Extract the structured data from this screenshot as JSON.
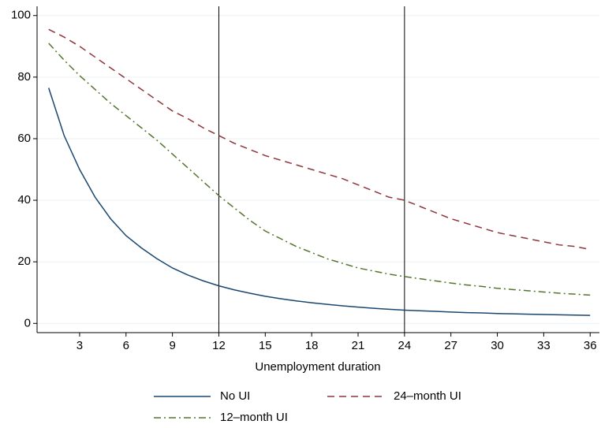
{
  "chart_data": {
    "type": "line",
    "x_label": "Unemployment duration",
    "x": [
      1,
      2,
      3,
      4,
      5,
      6,
      7,
      8,
      9,
      10,
      11,
      12,
      13,
      14,
      15,
      16,
      17,
      18,
      19,
      20,
      21,
      22,
      23,
      24,
      25,
      26,
      27,
      28,
      29,
      30,
      31,
      32,
      33,
      34,
      35,
      36
    ],
    "series": [
      {
        "name": "No UI",
        "color": "#1a476f",
        "dash": "solid",
        "values": [
          76.5,
          61,
          50,
          41,
          34,
          28.5,
          24.5,
          21,
          18,
          15.7,
          13.8,
          12.2,
          10.9,
          9.8,
          8.8,
          8,
          7.3,
          6.7,
          6.2,
          5.7,
          5.3,
          4.9,
          4.6,
          4.3,
          4.1,
          3.9,
          3.7,
          3.5,
          3.4,
          3.2,
          3.1,
          3.0,
          2.9,
          2.8,
          2.7,
          2.6
        ]
      },
      {
        "name": "24–month UI",
        "color": "#90353b",
        "dash": "dash",
        "values": [
          95.5,
          93,
          90,
          86.5,
          83,
          79.5,
          76,
          72.5,
          69,
          66.5,
          63.5,
          61,
          58.5,
          56.5,
          54.5,
          53,
          51.5,
          50,
          48.5,
          47,
          45,
          43,
          41,
          40,
          38,
          36,
          34,
          32.5,
          31,
          29.5,
          28.5,
          27.5,
          26.5,
          25.5,
          25,
          24
        ]
      },
      {
        "name": "12–month UI",
        "color": "#55752f",
        "dash": "dashdot",
        "values": [
          91,
          85.5,
          80.5,
          76,
          71.5,
          67.5,
          63.5,
          59.5,
          55,
          50.5,
          46,
          41.5,
          37.5,
          33.5,
          30,
          27.5,
          25,
          23,
          21,
          19.5,
          18,
          17,
          16,
          15.2,
          14.5,
          13.8,
          13.1,
          12.5,
          12,
          11.4,
          11,
          10.6,
          10.2,
          9.8,
          9.5,
          9.2
        ]
      }
    ],
    "xlim": [
      0.25,
      36.6
    ],
    "xticks": [
      3,
      6,
      9,
      12,
      15,
      18,
      21,
      24,
      27,
      30,
      33,
      36
    ],
    "ylim": [
      -3,
      103
    ],
    "yticks": [
      0,
      20,
      40,
      60,
      80,
      100
    ],
    "vlines": [
      12,
      24
    ],
    "grid": true,
    "legend_columns": 2
  }
}
